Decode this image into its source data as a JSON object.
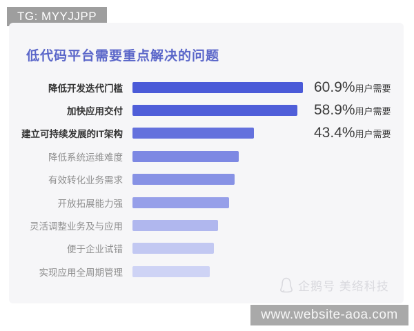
{
  "badge": {
    "label": "TG: MYYJJPP"
  },
  "watermark": {
    "icon": "penguin-icon",
    "text": "企鹅号 美络科技"
  },
  "footer": {
    "url": "www.website-aoa.com"
  },
  "colors": {
    "card_background": "#f6f6f8",
    "title": "#5a66c9",
    "badge_background": "#9e9e9e",
    "footer_background": "#a9a9a9",
    "emphasized_label": "#333333",
    "normal_label": "#8f8f8f",
    "value_text": "#3b3b3b",
    "watermark_text": "#d9d9de"
  },
  "chart_data": {
    "type": "bar",
    "orientation": "horizontal",
    "title": "低代码平台需要重点解决的问题",
    "categories": [
      "降低开发迭代门槛",
      "加快应用交付",
      "建立可持续发展的IT架构",
      "降低系统运维难度",
      "有效转化业务需求",
      "开放拓展能力强",
      "灵活调整业务及与应用",
      "便于企业试错",
      "实现应用全周期管理"
    ],
    "values": [
      60.9,
      58.9,
      43.4,
      38.0,
      36.5,
      34.5,
      30.5,
      29.0,
      27.5
    ],
    "value_labels": [
      "60.9%",
      "58.9%",
      "43.4%",
      "",
      "",
      "",
      "",
      "",
      ""
    ],
    "value_suffix": "用户需要",
    "values_note": "only first three values are labeled on the chart; remaining values estimated from bar lengths",
    "bar_colors": [
      "#4a5ad8",
      "#4f5ed9",
      "#6471dd",
      "#7d88e3",
      "#8792e5",
      "#969fe9",
      "#b0b7ee",
      "#c2c8f2",
      "#ced3f5"
    ],
    "emphasized_categories": 3,
    "xlim": [
      0,
      65
    ],
    "grid": false,
    "legend": false
  }
}
